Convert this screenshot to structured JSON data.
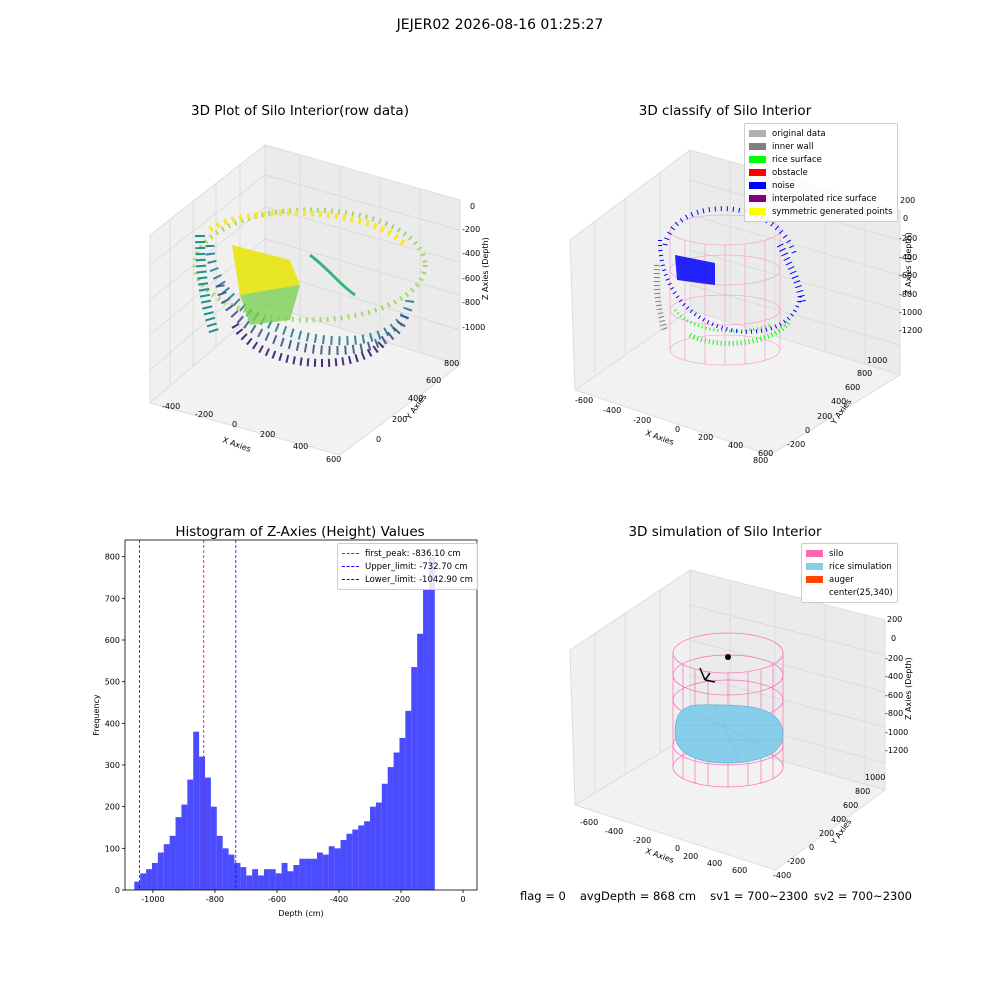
{
  "figure": {
    "suptitle": "JEJER02 2026-08-16 01:25:27"
  },
  "panels": {
    "raw": {
      "title": "3D Plot of Silo Interior(row data)",
      "xlabel": "X Axies",
      "ylabel": "Y Axies",
      "zlabel": "Z Axies (Depth)",
      "xticks": [
        "-400",
        "-200",
        "0",
        "200",
        "400",
        "600"
      ],
      "yticks": [
        "0",
        "200",
        "400",
        "600",
        "800"
      ],
      "zticks": [
        "0",
        "-200",
        "-400",
        "-600",
        "-800",
        "-1000"
      ]
    },
    "classify": {
      "title": "3D classify of Silo Interior",
      "xlabel": "X Axies",
      "ylabel": "Y Axies",
      "zlabel": "Z Axies (Depth)",
      "xticks": [
        "-600",
        "-400",
        "-200",
        "0",
        "200",
        "400",
        "600",
        "800"
      ],
      "yticks": [
        "-200",
        "0",
        "200",
        "400",
        "600",
        "800",
        "1000"
      ],
      "zticks": [
        "200",
        "0",
        "-200",
        "-400",
        "-600",
        "-800",
        "-1000",
        "-1200"
      ],
      "legend": [
        {
          "label": "original data",
          "color": "#b0b0b0"
        },
        {
          "label": "inner wall",
          "color": "#808080"
        },
        {
          "label": "rice surface",
          "color": "#00ff00"
        },
        {
          "label": "obstacle",
          "color": "#ff0000"
        },
        {
          "label": "noise",
          "color": "#0000ff"
        },
        {
          "label": "interpolated rice surface",
          "color": "#800080"
        },
        {
          "label": "symmetric generated points",
          "color": "#ffff00"
        }
      ]
    },
    "simulation": {
      "title": "3D simulation of Silo Interior",
      "xlabel": "X Axies",
      "ylabel": "Y Axies",
      "zlabel": "Z Axies (Depth)",
      "xticks": [
        "-600",
        "-400",
        "-200",
        "0",
        "200",
        "400",
        "600"
      ],
      "yticks": [
        "-400",
        "-200",
        "0",
        "200",
        "400",
        "600",
        "800",
        "1000"
      ],
      "zticks": [
        "200",
        "0",
        "-200",
        "-400",
        "-600",
        "-800",
        "-1000",
        "-1200"
      ],
      "legend": [
        {
          "label": "silo",
          "color": "#ff69b4"
        },
        {
          "label": "rice simulation",
          "color": "#87ceeb"
        },
        {
          "label": "auger",
          "color": "#ff4500"
        },
        {
          "label": "center(25,340)",
          "color": ""
        }
      ]
    }
  },
  "status": {
    "flag": "flag = 0",
    "avg_depth": "avgDepth = 868 cm",
    "sv1": "sv1 = 700~2300",
    "sv2": "sv2 = 700~2300"
  },
  "chart_data": [
    {
      "type": "histogram",
      "title": "Histogram of Z-Axies (Height) Values",
      "xlabel": "Depth (cm)",
      "ylabel": "Frequency",
      "xlim": [
        -1090,
        45
      ],
      "ylim": [
        0,
        840
      ],
      "xticks": [
        -1000,
        -800,
        -600,
        -400,
        -200,
        0
      ],
      "yticks": [
        0,
        100,
        200,
        300,
        400,
        500,
        600,
        700,
        800
      ],
      "bin_start": -1060,
      "bin_width": 19,
      "counts": [
        20,
        40,
        50,
        65,
        90,
        110,
        130,
        175,
        205,
        265,
        380,
        320,
        270,
        200,
        130,
        100,
        85,
        65,
        55,
        35,
        50,
        35,
        50,
        50,
        40,
        65,
        45,
        60,
        75,
        75,
        75,
        90,
        85,
        105,
        100,
        120,
        135,
        145,
        155,
        165,
        200,
        210,
        255,
        295,
        330,
        365,
        430,
        535,
        615,
        720,
        800
      ],
      "bar_color": "#0000ff",
      "vlines": [
        {
          "label": "first_peak: -836.10 cm",
          "x": -836.1,
          "color": "#ff0000"
        },
        {
          "label": "Upper_limit: -732.70 cm",
          "x": -732.7,
          "color": "#0000ff"
        },
        {
          "label": "Lower_limit: -1042.90 cm",
          "x": -1042.9,
          "color": "#0000ff"
        }
      ],
      "legend_position": "top-right"
    }
  ]
}
